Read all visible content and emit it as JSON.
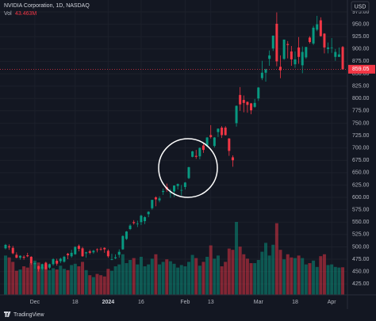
{
  "chart_data": {
    "type": "candlestick",
    "title": "NVIDIA Corporation, 1D, NASDAQ",
    "volume_label": "Vol",
    "last_volume_label": "43.463M",
    "currency": "USD",
    "brand": "TradingView",
    "up_color": "#089981",
    "down_color": "#f23645",
    "last_price": 859.05,
    "ylim": [
      403,
      999
    ],
    "yticks": [
      {
        "value": 425,
        "label": "425.00"
      },
      {
        "value": 450,
        "label": "450.00"
      },
      {
        "value": 475,
        "label": "475.00"
      },
      {
        "value": 500,
        "label": "500.00"
      },
      {
        "value": 525,
        "label": "525.00"
      },
      {
        "value": 550,
        "label": "550.00"
      },
      {
        "value": 575,
        "label": "575.00"
      },
      {
        "value": 600,
        "label": "600.00"
      },
      {
        "value": 625,
        "label": "625.00"
      },
      {
        "value": 650,
        "label": "650.00"
      },
      {
        "value": 675,
        "label": "675.00"
      },
      {
        "value": 700,
        "label": "700.00"
      },
      {
        "value": 725,
        "label": "725.00"
      },
      {
        "value": 750,
        "label": "750.00"
      },
      {
        "value": 775,
        "label": "775.00"
      },
      {
        "value": 800,
        "label": "800.00"
      },
      {
        "value": 825,
        "label": "825.00"
      },
      {
        "value": 850,
        "label": "850.00"
      },
      {
        "value": 875,
        "label": "875.00"
      },
      {
        "value": 900,
        "label": "900.00"
      },
      {
        "value": 925,
        "label": "925.00"
      },
      {
        "value": 950,
        "label": "950.00"
      },
      {
        "value": 975,
        "label": "975.00"
      }
    ],
    "xticks": [
      {
        "value": 8,
        "label": "Dec"
      },
      {
        "value": 19,
        "label": "18"
      },
      {
        "value": 28,
        "label": "2024"
      },
      {
        "value": 37,
        "label": "16"
      },
      {
        "value": 49,
        "label": "Feb"
      },
      {
        "value": 56,
        "label": "13"
      },
      {
        "value": 69,
        "label": "Mar"
      },
      {
        "value": 79,
        "label": "18"
      },
      {
        "value": 89,
        "label": "Apr"
      }
    ],
    "candles": [
      [
        497,
        506,
        495,
        504
      ],
      [
        501,
        505,
        494,
        499
      ],
      [
        498,
        502,
        485,
        487
      ],
      [
        484,
        489,
        477,
        478
      ],
      [
        478,
        483,
        474,
        482
      ],
      [
        480,
        483,
        474,
        478
      ],
      [
        483,
        488,
        479,
        481
      ],
      [
        480,
        481,
        464,
        467
      ],
      [
        465,
        469,
        456,
        467
      ],
      [
        461,
        462,
        450,
        455
      ],
      [
        456,
        466,
        453,
        465
      ],
      [
        468,
        470,
        454,
        455
      ],
      [
        458,
        466,
        455,
        465
      ],
      [
        465,
        477,
        462,
        475
      ],
      [
        472,
        476,
        462,
        466
      ],
      [
        471,
        478,
        467,
        476
      ],
      [
        470,
        482,
        468,
        480
      ],
      [
        486,
        488,
        475,
        483
      ],
      [
        481,
        494,
        478,
        488
      ],
      [
        485,
        501,
        484,
        500
      ],
      [
        502,
        505,
        491,
        496
      ],
      [
        497,
        500,
        480,
        481
      ],
      [
        487,
        490,
        478,
        489
      ],
      [
        491,
        494,
        485,
        488
      ],
      [
        489,
        494,
        486,
        492
      ],
      [
        495,
        497,
        489,
        494
      ],
      [
        496,
        499,
        492,
        495
      ],
      [
        498,
        499,
        488,
        495
      ],
      [
        492,
        495,
        478,
        481
      ],
      [
        474,
        486,
        473,
        475
      ],
      [
        477,
        485,
        475,
        479
      ],
      [
        484,
        495,
        478,
        490
      ],
      [
        495,
        523,
        494,
        522
      ],
      [
        516,
        532,
        514,
        531
      ],
      [
        536,
        546,
        534,
        543
      ],
      [
        550,
        554,
        545,
        548
      ],
      [
        547,
        553,
        540,
        547
      ],
      [
        550,
        565,
        544,
        563
      ],
      [
        552,
        562,
        546,
        560
      ],
      [
        566,
        572,
        560,
        571
      ],
      [
        578,
        595,
        575,
        595
      ],
      [
        600,
        602,
        582,
        596
      ],
      [
        594,
        602,
        590,
        598
      ],
      [
        611,
        618,
        605,
        613
      ],
      [
        621,
        628,
        611,
        616
      ],
      [
        609,
        617,
        599,
        610
      ],
      [
        612,
        624,
        601,
        624
      ],
      [
        623,
        628,
        616,
        627
      ],
      [
        614,
        625,
        604,
        615
      ],
      [
        621,
        631,
        616,
        630
      ],
      [
        639,
        662,
        637,
        661
      ],
      [
        682,
        694,
        681,
        693
      ],
      [
        684,
        696,
        678,
        682
      ],
      [
        683,
        701,
        677,
        700
      ],
      [
        705,
        710,
        690,
        696
      ],
      [
        705,
        722,
        704,
        721
      ],
      [
        726,
        746,
        719,
        722
      ],
      [
        704,
        722,
        701,
        721
      ],
      [
        732,
        739,
        722,
        739
      ],
      [
        741,
        744,
        720,
        726
      ],
      [
        741,
        744,
        725,
        726
      ],
      [
        719,
        720,
        684,
        694
      ],
      [
        681,
        685,
        662,
        675
      ],
      [
        750,
        786,
        743,
        785
      ],
      [
        807,
        823,
        775,
        788
      ],
      [
        797,
        806,
        772,
        791
      ],
      [
        793,
        794,
        771,
        787
      ],
      [
        790,
        791,
        768,
        776
      ],
      [
        783,
        799,
        781,
        791
      ],
      [
        800,
        823,
        795,
        822
      ],
      [
        841,
        876,
        837,
        852
      ],
      [
        852,
        860,
        834,
        859
      ],
      [
        880,
        897,
        866,
        887
      ],
      [
        901,
        927,
        896,
        927
      ],
      [
        951,
        974,
        865,
        875
      ],
      [
        864,
        887,
        841,
        857
      ],
      [
        880,
        919,
        878,
        919
      ],
      [
        910,
        916,
        881,
        908
      ],
      [
        895,
        906,
        866,
        879
      ],
      [
        869,
        895,
        862,
        879
      ],
      [
        903,
        924,
        870,
        884
      ],
      [
        867,
        905,
        851,
        894
      ],
      [
        883,
        904,
        880,
        904
      ],
      [
        923,
        926,
        911,
        914
      ],
      [
        911,
        947,
        908,
        943
      ],
      [
        939,
        967,
        936,
        950
      ],
      [
        958,
        964,
        925,
        926
      ],
      [
        931,
        932,
        891,
        903
      ],
      [
        900,
        913,
        891,
        903
      ],
      [
        902,
        922,
        892,
        903
      ],
      [
        884,
        900,
        876,
        894
      ],
      [
        884,
        903,
        884,
        889
      ],
      [
        904,
        906,
        858,
        859
      ]
    ],
    "volume": [
      62,
      59,
      52,
      38,
      40,
      45,
      43,
      50,
      54,
      51,
      44,
      48,
      39,
      42,
      40,
      46,
      41,
      39,
      47,
      49,
      45,
      52,
      39,
      31,
      28,
      33,
      31,
      29,
      41,
      38,
      45,
      48,
      64,
      50,
      55,
      58,
      48,
      60,
      45,
      48,
      57,
      64,
      48,
      52,
      56,
      53,
      49,
      43,
      47,
      45,
      52,
      63,
      58,
      46,
      52,
      60,
      78,
      57,
      62,
      45,
      52,
      73,
      71,
      115,
      76,
      64,
      57,
      50,
      50,
      55,
      68,
      82,
      62,
      79,
      113,
      71,
      56,
      64,
      59,
      58,
      62,
      58,
      48,
      50,
      54,
      44,
      61,
      64,
      47,
      48,
      44,
      43,
      43.463
    ]
  }
}
